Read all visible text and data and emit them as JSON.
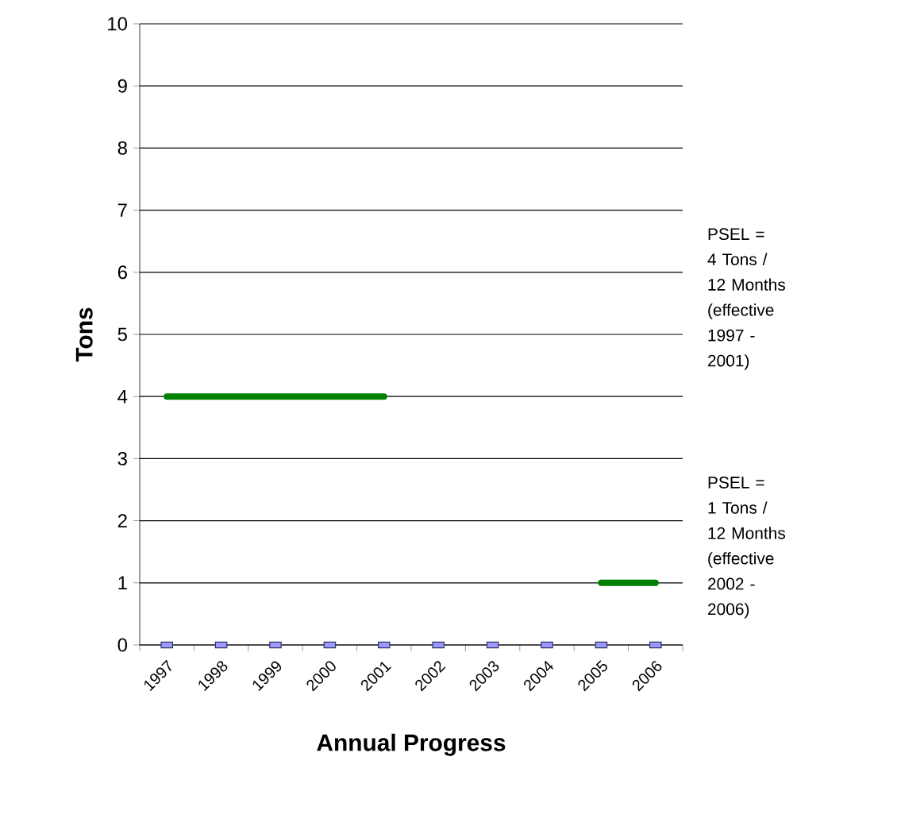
{
  "chart_data": {
    "type": "line",
    "xlabel": "Annual Progress",
    "ylabel": "Tons",
    "categories": [
      "1997",
      "1998",
      "1999",
      "2000",
      "2001",
      "2002",
      "2003",
      "2004",
      "2005",
      "2006"
    ],
    "series": [
      {
        "type": "scatter",
        "marker": "square",
        "color": "#9999ff",
        "values": [
          0,
          0,
          0,
          0,
          0,
          0,
          0,
          0,
          0,
          0
        ]
      },
      {
        "marker": "none",
        "color": "#008000",
        "values": [
          4,
          4,
          4,
          4,
          4,
          null,
          null,
          null,
          null,
          null
        ]
      },
      {
        "marker": "none",
        "color": "#008000",
        "values": [
          null,
          null,
          null,
          null,
          null,
          null,
          null,
          null,
          1,
          1
        ]
      }
    ],
    "ylim": [
      0,
      10
    ],
    "yticks": [
      0,
      1,
      2,
      3,
      4,
      5,
      6,
      7,
      8,
      9,
      10
    ],
    "grid": "y",
    "annotations": [
      "PSEL = 4 Tons / 12 Months (effective 1997 - 2001)",
      "PSEL = 1 Tons / 12 Months (effective 2002 - 2006)"
    ]
  }
}
